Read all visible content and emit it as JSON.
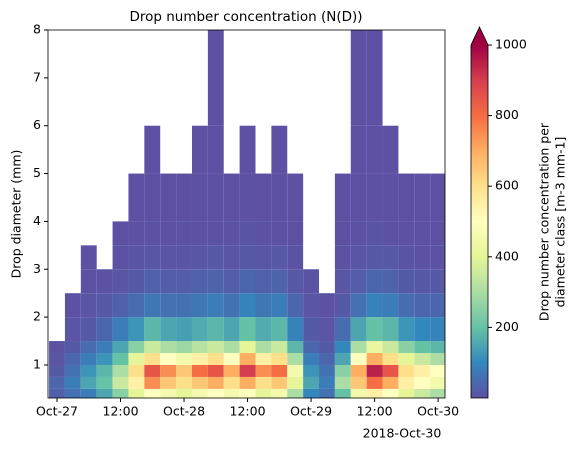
{
  "chart_data": {
    "type": "heatmap",
    "title": "Drop number concentration (N(D))",
    "y_label": "Drop diameter (mm)",
    "x_offset_label": "2018-Oct-30",
    "colorbar_label": [
      "Drop number concentration per",
      "diameter class [m-3 mm-1]"
    ],
    "xlim": [
      -1.7,
      73.3
    ],
    "xticks": [
      {
        "value": 0,
        "label": "Oct-27"
      },
      {
        "value": 12,
        "label": "12:00"
      },
      {
        "value": 24,
        "label": "Oct-28"
      },
      {
        "value": 36,
        "label": "12:00"
      },
      {
        "value": 48,
        "label": "Oct-29"
      },
      {
        "value": 60,
        "label": "12:00"
      },
      {
        "value": 72,
        "label": "Oct-30"
      }
    ],
    "ylim": [
      0.31,
      8
    ],
    "yticks": [
      1,
      2,
      3,
      4,
      5,
      6,
      7,
      8
    ],
    "x_bins": [
      -1.5,
      1.5,
      4.5,
      7.5,
      10.5,
      13.5,
      16.5,
      19.5,
      22.5,
      25.5,
      28.5,
      31.5,
      34.5,
      37.5,
      40.5,
      43.5,
      46.5,
      49.5,
      52.5,
      55.5,
      58.5,
      61.5,
      64.5,
      67.5,
      70.5,
      73.5
    ],
    "y_bins": [
      0.31,
      0.5,
      0.75,
      1,
      1.25,
      1.5,
      2,
      2.5,
      3,
      3.5,
      4,
      5,
      6,
      8
    ],
    "values": [
      [
        30,
        60,
        80,
        150,
        250,
        400,
        500,
        450,
        400,
        450,
        500,
        450,
        500,
        400,
        450,
        300,
        100,
        60,
        200,
        450,
        550,
        500,
        400,
        350,
        300
      ],
      [
        40,
        80,
        150,
        200,
        350,
        550,
        750,
        650,
        600,
        650,
        700,
        600,
        700,
        600,
        650,
        400,
        150,
        80,
        300,
        650,
        800,
        700,
        550,
        500,
        450
      ],
      [
        20,
        60,
        120,
        180,
        300,
        600,
        850,
        750,
        650,
        800,
        850,
        700,
        900,
        750,
        800,
        450,
        120,
        60,
        250,
        700,
        950,
        850,
        600,
        550,
        500
      ],
      [
        10,
        40,
        80,
        120,
        200,
        400,
        600,
        500,
        450,
        550,
        600,
        500,
        700,
        550,
        600,
        300,
        80,
        40,
        150,
        500,
        700,
        600,
        400,
        350,
        300
      ],
      [
        5,
        20,
        50,
        80,
        150,
        250,
        350,
        300,
        280,
        320,
        350,
        300,
        400,
        300,
        350,
        180,
        40,
        20,
        100,
        300,
        420,
        350,
        250,
        200,
        180
      ],
      [
        null,
        10,
        20,
        40,
        80,
        120,
        180,
        150,
        140,
        160,
        180,
        150,
        200,
        160,
        180,
        90,
        20,
        10,
        50,
        150,
        200,
        180,
        120,
        100,
        90
      ],
      [
        null,
        5,
        10,
        15,
        30,
        50,
        70,
        60,
        60,
        70,
        80,
        60,
        90,
        70,
        80,
        40,
        10,
        5,
        20,
        60,
        90,
        80,
        50,
        40,
        40
      ],
      [
        null,
        null,
        5,
        5,
        10,
        20,
        30,
        25,
        25,
        30,
        35,
        25,
        40,
        30,
        35,
        15,
        5,
        null,
        10,
        25,
        40,
        35,
        20,
        15,
        15
      ],
      [
        null,
        null,
        3,
        null,
        5,
        8,
        12,
        10,
        10,
        12,
        15,
        10,
        15,
        12,
        15,
        5,
        null,
        null,
        5,
        10,
        15,
        15,
        8,
        6,
        5
      ],
      [
        null,
        null,
        null,
        null,
        2,
        4,
        6,
        4,
        5,
        6,
        6,
        5,
        8,
        5,
        6,
        2,
        null,
        null,
        2,
        5,
        8,
        6,
        4,
        3,
        2
      ],
      [
        null,
        null,
        null,
        null,
        null,
        1,
        2,
        2,
        2,
        3,
        3,
        2,
        4,
        2,
        3,
        1,
        null,
        null,
        1,
        2,
        4,
        3,
        2,
        1,
        1
      ],
      [
        null,
        null,
        null,
        null,
        null,
        null,
        1,
        null,
        null,
        1,
        1,
        null,
        1,
        null,
        1,
        null,
        null,
        null,
        null,
        1,
        1,
        1,
        null,
        null,
        null
      ],
      [
        null,
        null,
        null,
        null,
        null,
        null,
        null,
        null,
        null,
        null,
        1,
        null,
        null,
        null,
        null,
        null,
        null,
        null,
        null,
        1,
        1,
        null,
        null,
        null,
        null
      ]
    ],
    "clim": [
      0,
      1000
    ],
    "cbar_ticks": [
      200,
      400,
      600,
      800,
      1000
    ],
    "colormap": [
      "#5e4fa2",
      "#3288bd",
      "#66c2a5",
      "#abdda4",
      "#e6f598",
      "#ffffbf",
      "#fee08b",
      "#fdae61",
      "#f46d43",
      "#d53e4f",
      "#9e0142"
    ]
  }
}
